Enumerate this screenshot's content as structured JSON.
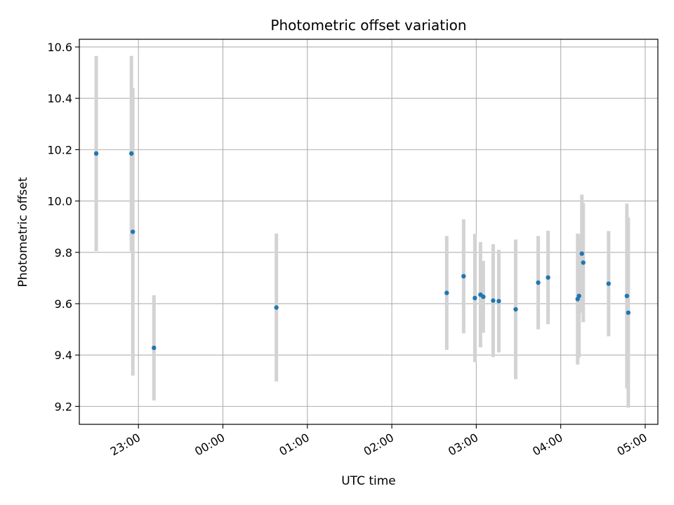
{
  "chart_data": {
    "type": "scatter",
    "title": "Photometric offset variation",
    "xlabel": "UTC time",
    "ylabel": "Photometric offset",
    "grid": true,
    "legend": "none",
    "x_ticks": [
      "23:00",
      "00:00",
      "01:00",
      "02:00",
      "03:00",
      "04:00",
      "05:00"
    ],
    "x_tick_values": [
      "23:00",
      "24:00",
      "25:00",
      "26:00",
      "27:00",
      "28:00",
      "29:00"
    ],
    "y_ticks": [
      "9.2",
      "9.4",
      "9.6",
      "9.8",
      "10.0",
      "10.2",
      "10.4",
      "10.6"
    ],
    "y_tick_values": [
      9.2,
      9.4,
      9.6,
      9.8,
      10.0,
      10.2,
      10.4,
      10.6
    ],
    "xlim": [
      "22:18",
      "29:09"
    ],
    "ylim": [
      9.13,
      10.63
    ],
    "colors": {
      "point": "#1f77b4",
      "errorbar": "#d3d3d3",
      "grid": "#b0b0b0",
      "axis": "#000000"
    },
    "points": [
      {
        "x": "22:30",
        "y": 10.185,
        "err": 0.38
      },
      {
        "x": "22:55",
        "y": 10.185,
        "err": 0.38
      },
      {
        "x": "22:56",
        "y": 9.88,
        "err": 0.56
      },
      {
        "x": "23:11",
        "y": 9.428,
        "err": 0.205
      },
      {
        "x": "24:38",
        "y": 9.585,
        "err": 0.288
      },
      {
        "x": "26:39",
        "y": 9.642,
        "err": 0.222
      },
      {
        "x": "26:51",
        "y": 9.707,
        "err": 0.222
      },
      {
        "x": "26:59",
        "y": 9.622,
        "err": 0.25
      },
      {
        "x": "27:03",
        "y": 9.635,
        "err": 0.205
      },
      {
        "x": "27:05",
        "y": 9.627,
        "err": 0.14
      },
      {
        "x": "27:12",
        "y": 9.612,
        "err": 0.22
      },
      {
        "x": "27:16",
        "y": 9.61,
        "err": 0.2
      },
      {
        "x": "27:28",
        "y": 9.578,
        "err": 0.272
      },
      {
        "x": "27:44",
        "y": 9.682,
        "err": 0.182
      },
      {
        "x": "27:51",
        "y": 9.702,
        "err": 0.182
      },
      {
        "x": "28:12",
        "y": 9.618,
        "err": 0.255
      },
      {
        "x": "28:13",
        "y": 9.63,
        "err": 0.24
      },
      {
        "x": "28:15",
        "y": 9.795,
        "err": 0.23
      },
      {
        "x": "28:16",
        "y": 9.76,
        "err": 0.232
      },
      {
        "x": "28:34",
        "y": 9.678,
        "err": 0.205
      },
      {
        "x": "28:47",
        "y": 9.63,
        "err": 0.36
      },
      {
        "x": "28:48",
        "y": 9.565,
        "err": 0.37
      }
    ]
  }
}
